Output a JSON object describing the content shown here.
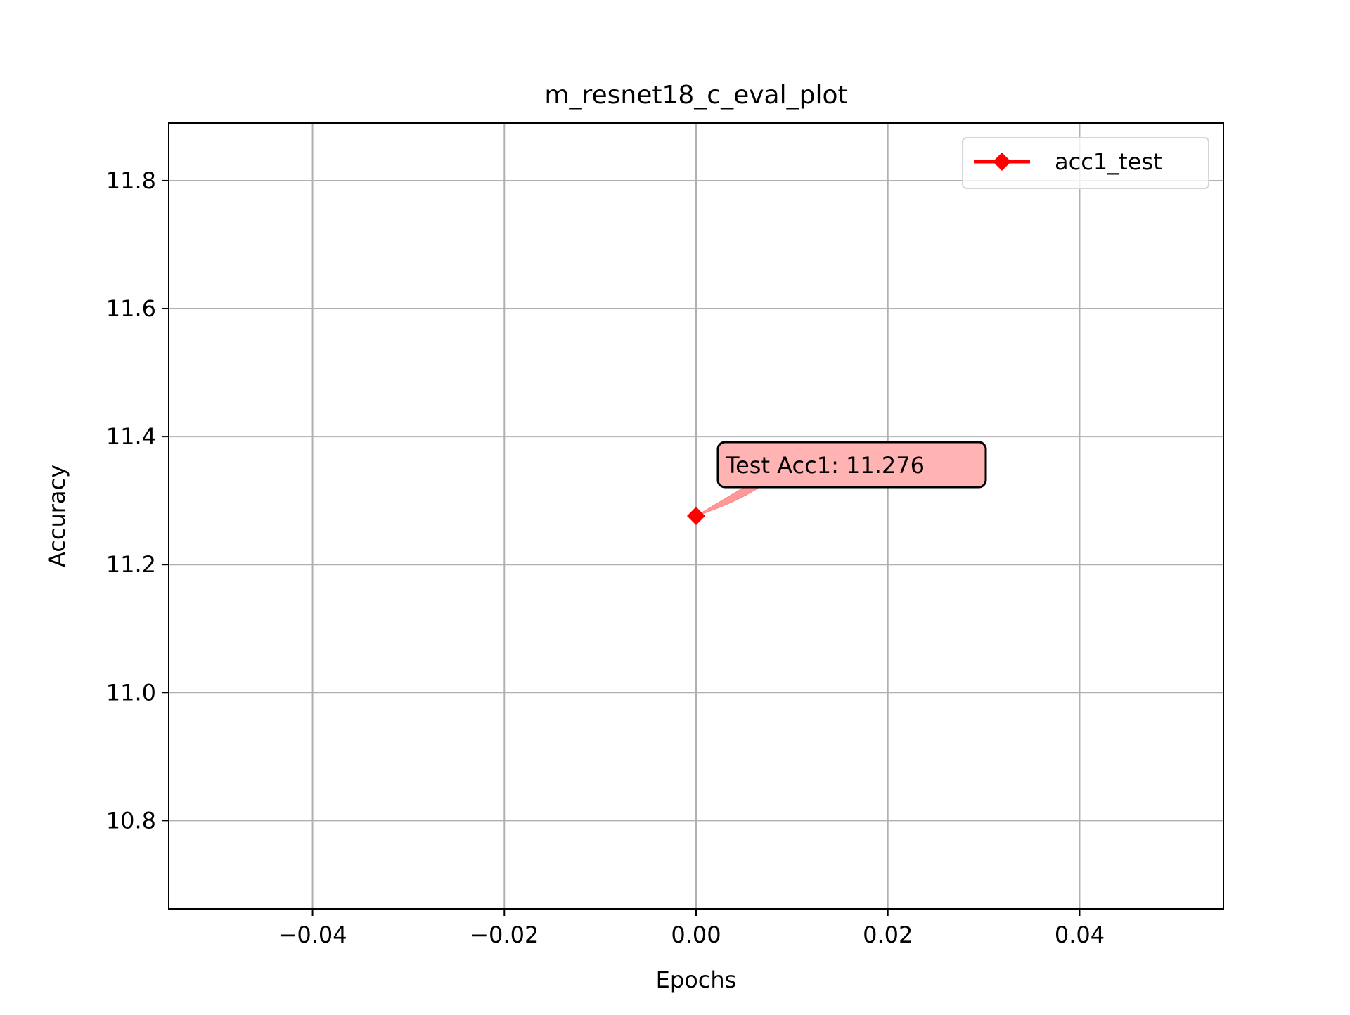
{
  "chart_data": {
    "type": "line",
    "title": "m_resnet18_c_eval_plot",
    "xlabel": "Epochs",
    "ylabel": "Accuracy",
    "xlim": [
      -0.055,
      0.055
    ],
    "ylim": [
      10.662,
      11.89
    ],
    "xticks": [
      -0.04,
      -0.02,
      0.0,
      0.02,
      0.04
    ],
    "xtick_labels": [
      "−0.04",
      "−0.02",
      "0.00",
      "0.02",
      "0.04"
    ],
    "yticks": [
      10.8,
      11.0,
      11.2,
      11.4,
      11.6,
      11.8
    ],
    "ytick_labels": [
      "10.8",
      "11.0",
      "11.2",
      "11.4",
      "11.6",
      "11.8"
    ],
    "grid": true,
    "legend_position": "top-right",
    "series": [
      {
        "name": "acc1_test",
        "color": "#ff0000",
        "marker": "diamond",
        "x": [
          0
        ],
        "y": [
          11.276
        ]
      }
    ],
    "annotations": [
      {
        "text": "Test Acc1: 11.276",
        "x": 0,
        "y": 11.276,
        "box_color": "#ffb3b3",
        "arrow_color": "#ff7f7f"
      }
    ]
  }
}
